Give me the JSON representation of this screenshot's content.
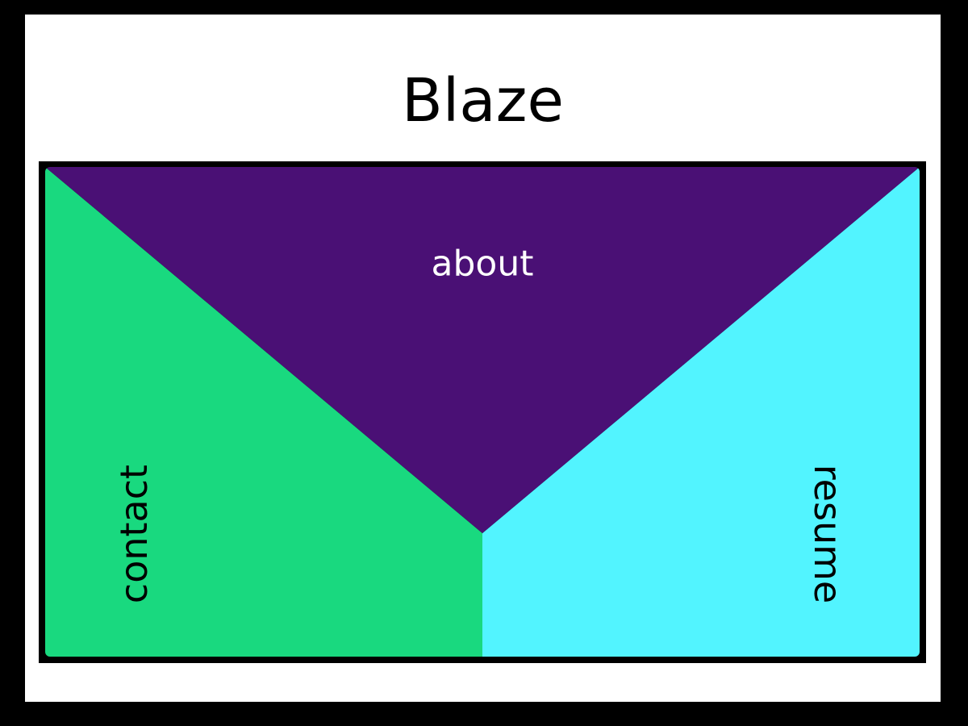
{
  "site": {
    "title": "Blaze"
  },
  "nav": {
    "about": {
      "label": "about",
      "color": "#4a1075"
    },
    "contact": {
      "label": "contact",
      "color": "#19d97f"
    },
    "resume": {
      "label": "resume",
      "color": "#52f4ff"
    }
  },
  "colors": {
    "background": "#000000",
    "page": "#ffffff",
    "frame": "#000000"
  }
}
